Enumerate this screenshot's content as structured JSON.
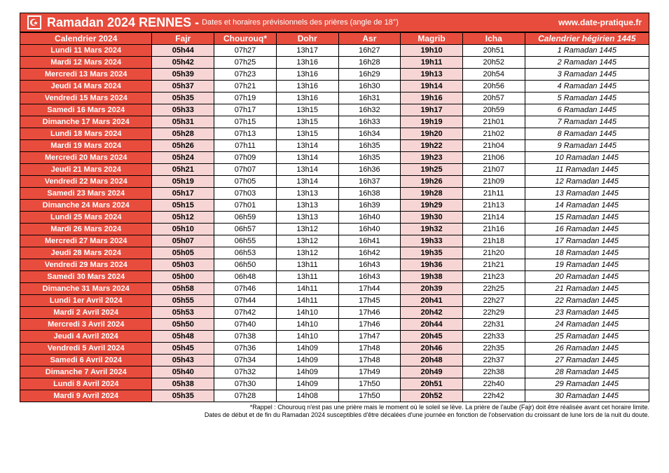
{
  "header": {
    "title": "Ramadan 2024 RENNES -",
    "subtitle": "Dates et horaires prévisionnels des prières (angle de 18°)",
    "url": "www.date-pratique.fr"
  },
  "columns": [
    "Calendrier 2024",
    "Fajr",
    "Chourouq*",
    "Dohr",
    "Asr",
    "Magrib",
    "Icha",
    "Calendrier hégirien 1445"
  ],
  "rows": [
    [
      "Lundi 11 Mars 2024",
      "05h44",
      "07h27",
      "13h17",
      "16h27",
      "19h10",
      "20h51",
      "1 Ramadan 1445"
    ],
    [
      "Mardi 12 Mars 2024",
      "05h42",
      "07h25",
      "13h16",
      "16h28",
      "19h11",
      "20h52",
      "2 Ramadan 1445"
    ],
    [
      "Mercredi 13 Mars 2024",
      "05h39",
      "07h23",
      "13h16",
      "16h29",
      "19h13",
      "20h54",
      "3 Ramadan 1445"
    ],
    [
      "Jeudi 14 Mars 2024",
      "05h37",
      "07h21",
      "13h16",
      "16h30",
      "19h14",
      "20h56",
      "4 Ramadan 1445"
    ],
    [
      "Vendredi 15 Mars 2024",
      "05h35",
      "07h19",
      "13h16",
      "16h31",
      "19h16",
      "20h57",
      "5 Ramadan 1445"
    ],
    [
      "Samedi 16 Mars 2024",
      "05h33",
      "07h17",
      "13h15",
      "16h32",
      "19h17",
      "20h59",
      "6 Ramadan 1445"
    ],
    [
      "Dimanche 17 Mars 2024",
      "05h31",
      "07h15",
      "13h15",
      "16h33",
      "19h19",
      "21h01",
      "7 Ramadan 1445"
    ],
    [
      "Lundi 18 Mars 2024",
      "05h28",
      "07h13",
      "13h15",
      "16h34",
      "19h20",
      "21h02",
      "8 Ramadan 1445"
    ],
    [
      "Mardi 19 Mars 2024",
      "05h26",
      "07h11",
      "13h14",
      "16h35",
      "19h22",
      "21h04",
      "9 Ramadan 1445"
    ],
    [
      "Mercredi 20 Mars 2024",
      "05h24",
      "07h09",
      "13h14",
      "16h35",
      "19h23",
      "21h06",
      "10 Ramadan 1445"
    ],
    [
      "Jeudi 21 Mars 2024",
      "05h21",
      "07h07",
      "13h14",
      "16h36",
      "19h25",
      "21h07",
      "11 Ramadan 1445"
    ],
    [
      "Vendredi 22 Mars 2024",
      "05h19",
      "07h05",
      "13h14",
      "16h37",
      "19h26",
      "21h09",
      "12 Ramadan 1445"
    ],
    [
      "Samedi 23 Mars 2024",
      "05h17",
      "07h03",
      "13h13",
      "16h38",
      "19h28",
      "21h11",
      "13 Ramadan 1445"
    ],
    [
      "Dimanche 24 Mars 2024",
      "05h15",
      "07h01",
      "13h13",
      "16h39",
      "19h29",
      "21h13",
      "14 Ramadan 1445"
    ],
    [
      "Lundi 25 Mars 2024",
      "05h12",
      "06h59",
      "13h13",
      "16h40",
      "19h30",
      "21h14",
      "15 Ramadan 1445"
    ],
    [
      "Mardi 26 Mars 2024",
      "05h10",
      "06h57",
      "13h12",
      "16h40",
      "19h32",
      "21h16",
      "16 Ramadan 1445"
    ],
    [
      "Mercredi 27 Mars 2024",
      "05h07",
      "06h55",
      "13h12",
      "16h41",
      "19h33",
      "21h18",
      "17 Ramadan 1445"
    ],
    [
      "Jeudi 28 Mars 2024",
      "05h05",
      "06h53",
      "13h12",
      "16h42",
      "19h35",
      "21h20",
      "18 Ramadan 1445"
    ],
    [
      "Vendredi 29 Mars 2024",
      "05h03",
      "06h50",
      "13h11",
      "16h43",
      "19h36",
      "21h21",
      "19 Ramadan 1445"
    ],
    [
      "Samedi 30 Mars 2024",
      "05h00",
      "06h48",
      "13h11",
      "16h43",
      "19h38",
      "21h23",
      "20 Ramadan 1445"
    ],
    [
      "Dimanche 31 Mars 2024",
      "05h58",
      "07h46",
      "14h11",
      "17h44",
      "20h39",
      "22h25",
      "21 Ramadan 1445"
    ],
    [
      "Lundi 1er Avril 2024",
      "05h55",
      "07h44",
      "14h11",
      "17h45",
      "20h41",
      "22h27",
      "22 Ramadan 1445"
    ],
    [
      "Mardi 2 Avril 2024",
      "05h53",
      "07h42",
      "14h10",
      "17h46",
      "20h42",
      "22h29",
      "23 Ramadan 1445"
    ],
    [
      "Mercredi 3 Avril 2024",
      "05h50",
      "07h40",
      "14h10",
      "17h46",
      "20h44",
      "22h31",
      "24 Ramadan 1445"
    ],
    [
      "Jeudi 4 Avril 2024",
      "05h48",
      "07h38",
      "14h10",
      "17h47",
      "20h45",
      "22h33",
      "25 Ramadan 1445"
    ],
    [
      "Vendredi 5 Avril 2024",
      "05h45",
      "07h36",
      "14h09",
      "17h48",
      "20h46",
      "22h35",
      "26 Ramadan 1445"
    ],
    [
      "Samedi 6 Avril 2024",
      "05h43",
      "07h34",
      "14h09",
      "17h48",
      "20h48",
      "22h37",
      "27 Ramadan 1445"
    ],
    [
      "Dimanche 7 Avril 2024",
      "05h40",
      "07h32",
      "14h09",
      "17h49",
      "20h49",
      "22h38",
      "28 Ramadan 1445"
    ],
    [
      "Lundi 8 Avril 2024",
      "05h38",
      "07h30",
      "14h09",
      "17h50",
      "20h51",
      "22h40",
      "29 Ramadan 1445"
    ],
    [
      "Mardi 9 Avril 2024",
      "05h35",
      "07h28",
      "14h08",
      "17h50",
      "20h52",
      "22h42",
      "30 Ramadan 1445"
    ]
  ],
  "footnotes": [
    "*Rappel : Chourouq n'est pas une prière mais le moment où le soleil se lève. La prière de l'aube (Fajr) doit être réalisée avant cet horaire limite.",
    "Dates de début et de fin du Ramadan 2024 susceptibles d'être décalées d'une journée en fonction de l'observation du croissant de lune lors de la nuit du doute."
  ]
}
